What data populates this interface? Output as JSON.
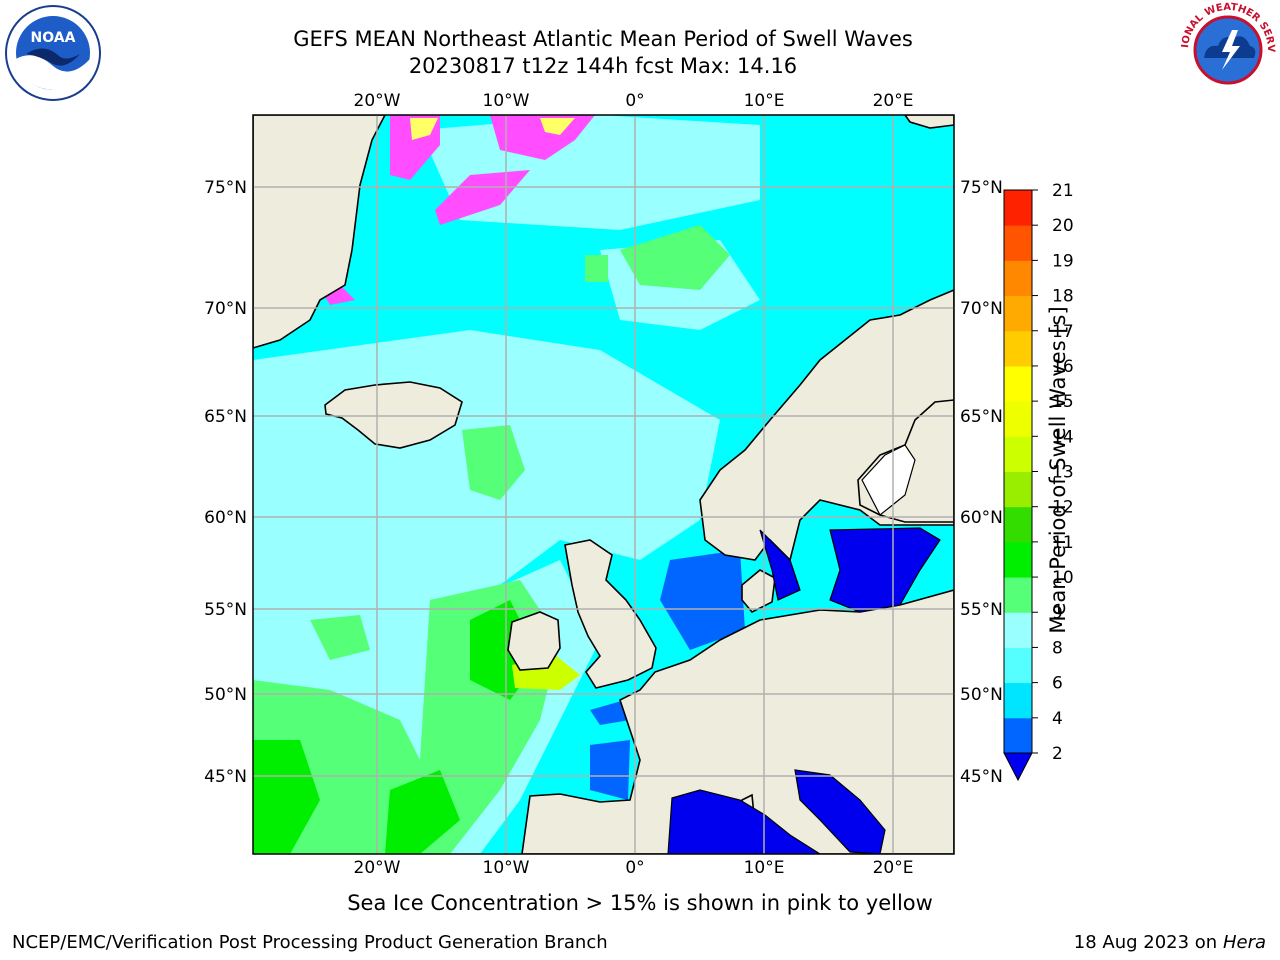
{
  "title": {
    "line1": "GEFS MEAN Northeast Atlantic Mean Period of Swell Waves",
    "line2": "20230817 t12z 144h fcst   Max: 14.16"
  },
  "logos": {
    "left": "noaa-logo",
    "left_text": "NOAA",
    "right": "national-weather-service-logo",
    "right_text": "NATIONAL WEATHER SERVICE"
  },
  "map": {
    "lon_labels": [
      "20°W",
      "10°W",
      "0°",
      "10°E",
      "20°E"
    ],
    "lon_values": [
      -20,
      -10,
      0,
      10,
      20
    ],
    "lat_labels": [
      "75°N",
      "70°N",
      "65°N",
      "60°N",
      "55°N",
      "50°N",
      "45°N"
    ],
    "lat_values": [
      75,
      70,
      65,
      60,
      55,
      50,
      45
    ],
    "colors": {
      "land": "#eeeddd",
      "ocean_base": "#00ffff",
      "ice": "#ff4dff",
      "coastline": "#000000",
      "grid": "#b0b0b0"
    }
  },
  "colorbar": {
    "label": "Mean Period of Swell Waves [s]",
    "ticks": [
      "2",
      "4",
      "6",
      "8",
      "9",
      "10",
      "11",
      "12",
      "13",
      "14",
      "15",
      "16",
      "17",
      "18",
      "19",
      "20",
      "21"
    ],
    "colors": [
      "#0066ff",
      "#00e5ff",
      "#55ffff",
      "#99ffff",
      "#55ff77",
      "#00ee00",
      "#33dd00",
      "#99ee00",
      "#ccff00",
      "#eeff00",
      "#ffff00",
      "#ffcc00",
      "#ffaa00",
      "#ff8800",
      "#ff5500",
      "#ff2200"
    ],
    "under_color": "#0000ee"
  },
  "caption": "Sea Ice Concentration > 15% is shown in pink to yellow",
  "footer": {
    "left": "NCEP/EMC/Verification Post Processing Product Generation Branch",
    "right_date": "18 Aug 2023 on",
    "right_host": "Hera"
  }
}
